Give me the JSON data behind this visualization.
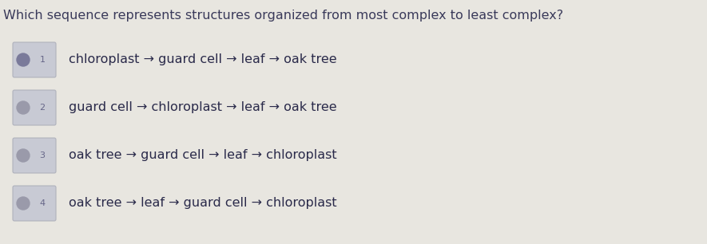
{
  "title": "Which sequence represents structures organized from most complex to least complex?",
  "title_fontsize": 11.5,
  "title_color": "#3a3a5a",
  "background_color": "#e8e6e0",
  "options": [
    {
      "number": "1",
      "text": "chloroplast → guard cell → leaf → oak tree",
      "selected": true
    },
    {
      "number": "2",
      "text": "guard cell → chloroplast → leaf → oak tree",
      "selected": false
    },
    {
      "number": "3",
      "text": "oak tree → guard cell → leaf → chloroplast",
      "selected": false
    },
    {
      "number": "4",
      "text": "oak tree → leaf → guard cell → chloroplast",
      "selected": false
    }
  ],
  "option_fontsize": 11.5,
  "option_text_color": "#2a2a4a",
  "box_facecolor": "#c8cad4",
  "box_edgecolor": "#b0b2bc",
  "dot_color_selected": "#7a7a9a",
  "dot_color_unselected": "#9a9aaa",
  "number_color": "#666688",
  "number_fontsize": 8
}
